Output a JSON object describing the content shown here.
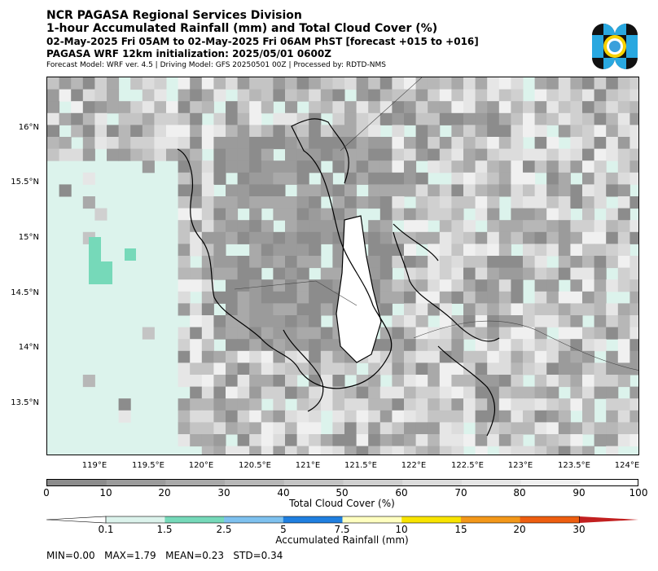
{
  "header": {
    "org": "NCR PAGASA Regional Services Division",
    "product": "1-hour Accumulated Rainfall (mm) and Total Cloud Cover (%)",
    "valid": "02-May-2025 Fri 05AM to 02-May-2025 Fri 06AM PhST [forecast +015 to +016]",
    "init": "PAGASA WRF 12km initialization: 2025/05/01 0600Z",
    "meta": "Forecast Model: WRF ver. 4.5 | Driving Model: GFS 20250501 00Z | Processed by: RDTD-NMS"
  },
  "map": {
    "lat_labels": [
      "16°N",
      "15.5°N",
      "15°N",
      "14.5°N",
      "14°N",
      "13.5°N"
    ],
    "lon_labels": [
      "119°E",
      "119.5°E",
      "120°E",
      "120.5°E",
      "121°E",
      "121.5°E",
      "122°E",
      "122.5°E",
      "123°E",
      "123.5°E",
      "124°E"
    ]
  },
  "cloud_cover": {
    "label": "Total Cloud Cover (%)",
    "ticks": [
      "0",
      "10",
      "20",
      "30",
      "40",
      "50",
      "60",
      "70",
      "80",
      "90",
      "100"
    ],
    "colors": [
      "#8c8c8c",
      "#9b9b9b",
      "#a9a9a9",
      "#b7b7b7",
      "#c4c4c4",
      "#d0d0d0",
      "#dcdcdc",
      "#e6e6e6",
      "#f0f0f0",
      "#ffffff"
    ]
  },
  "rainfall": {
    "label": "Accumulated Rainfall (mm)",
    "ticks": [
      "0.1",
      "1.5",
      "2.5",
      "5",
      "7.5",
      "10",
      "15",
      "20",
      "30"
    ],
    "colors": [
      "#ffffff",
      "#dcf3ec",
      "#76d9b9",
      "#7ec1ef",
      "#1f7fe0",
      "#ffffc0",
      "#f8e400",
      "#f3981a",
      "#ee5e10",
      "#c22020"
    ]
  },
  "stats": {
    "text": "MIN=0.00   MAX=1.79   MEAN=0.23   STD=0.34"
  }
}
